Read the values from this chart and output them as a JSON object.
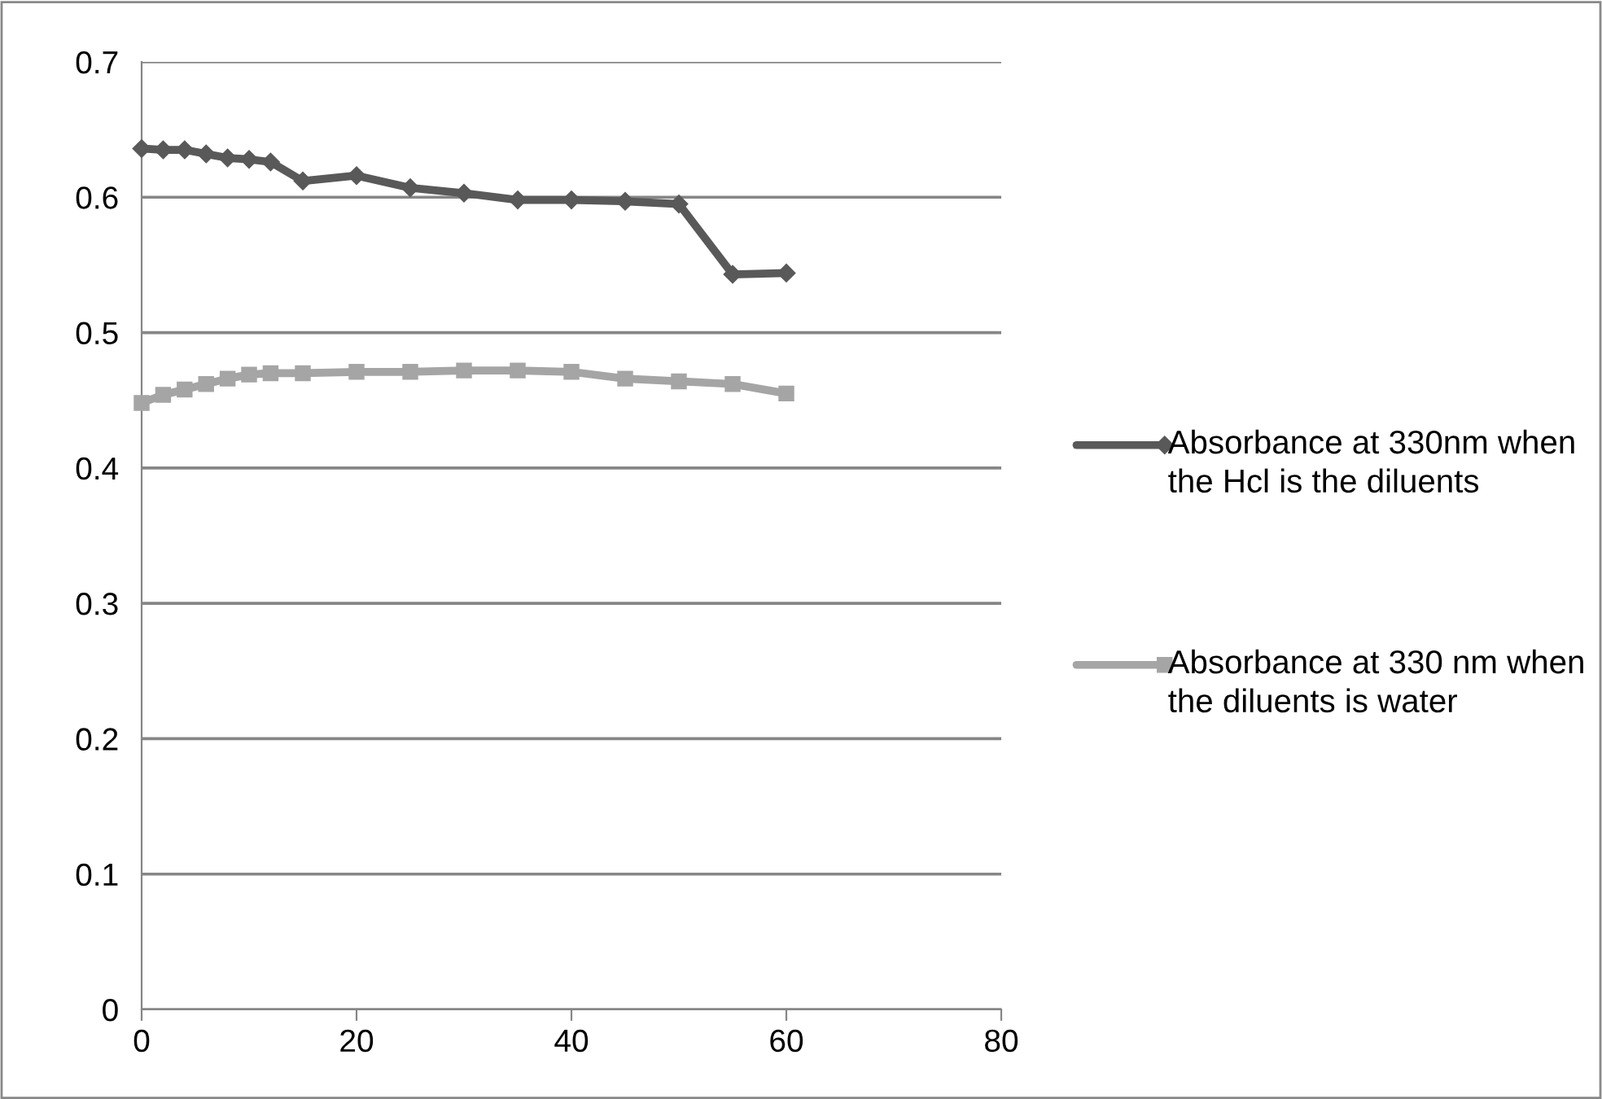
{
  "chart_data": {
    "type": "line",
    "x": [
      0,
      2,
      4,
      6,
      8,
      10,
      12,
      15,
      20,
      25,
      30,
      35,
      40,
      45,
      50,
      55,
      60
    ],
    "series": [
      {
        "name": "Absorbance at 330nm when the Hcl is the diluents",
        "color": "#595959",
        "marker": "diamond",
        "values": [
          0.636,
          0.635,
          0.635,
          0.632,
          0.629,
          0.628,
          0.626,
          0.612,
          0.616,
          0.607,
          0.603,
          0.598,
          0.598,
          0.597,
          0.595,
          0.543,
          0.544
        ]
      },
      {
        "name": "Absorbance at 330 nm when the diluents is water",
        "color": "#a5a5a5",
        "marker": "square",
        "values": [
          0.448,
          0.454,
          0.458,
          0.462,
          0.466,
          0.469,
          0.47,
          0.47,
          0.471,
          0.471,
          0.472,
          0.472,
          0.471,
          0.466,
          0.464,
          0.462,
          0.455
        ]
      }
    ],
    "xlim": [
      0,
      80
    ],
    "xticks": [
      0,
      20,
      40,
      60,
      80
    ],
    "ylim": [
      0,
      0.7
    ],
    "yticks": [
      0,
      0.1,
      0.2,
      0.3,
      0.4,
      0.5,
      0.6,
      0.7
    ],
    "grid": "y",
    "legend": "right",
    "line_style": "solid"
  }
}
